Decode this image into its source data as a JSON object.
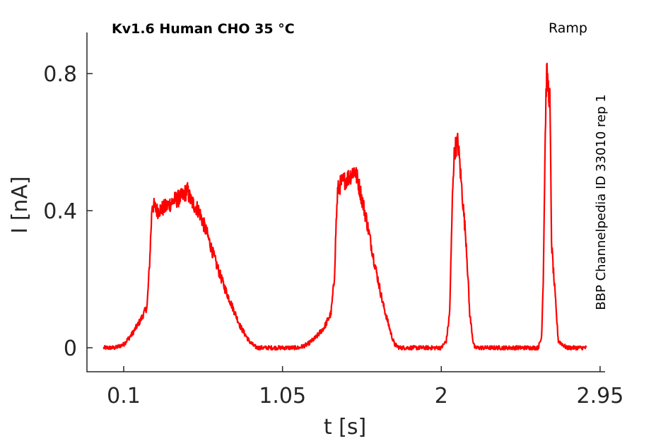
{
  "chart_data": {
    "type": "line",
    "title": "Kv1.6  Human  CHO  35 °C",
    "protocol": "Ramp",
    "side_label": "BBP Channelpedia ID 33010 rep 1",
    "xlabel": "t [s]",
    "ylabel": "I [nA]",
    "xlim": [
      -0.12,
      2.98
    ],
    "ylim": [
      -0.07,
      0.92
    ],
    "xticks": [
      0.1,
      1.05,
      2,
      2.95
    ],
    "xtick_labels": [
      "0.1",
      "1.05",
      "2",
      "2.95"
    ],
    "yticks": [
      0,
      0.4,
      0.8
    ],
    "ytick_labels": [
      "0",
      "0.4",
      "0.8"
    ],
    "grid": false,
    "line_color": "#ff0000",
    "series": [
      {
        "x": [
          -0.02,
          0.05,
          0.1,
          0.15,
          0.2,
          0.24,
          0.255,
          0.27,
          0.3,
          0.35,
          0.4,
          0.45,
          0.48,
          0.5,
          0.55,
          0.6,
          0.65,
          0.7,
          0.75,
          0.8,
          0.85,
          0.88,
          0.9,
          0.95,
          1.0,
          1.05,
          1.1,
          1.15,
          1.2,
          1.25,
          1.3,
          1.34,
          1.36,
          1.37,
          1.38,
          1.4,
          1.45,
          1.48,
          1.5,
          1.55,
          1.6,
          1.65,
          1.7,
          1.72,
          1.75,
          1.8,
          1.85,
          1.9,
          1.95,
          2.0,
          2.03,
          2.05,
          2.06,
          2.07,
          2.08,
          2.1,
          2.15,
          2.17,
          2.19,
          2.2,
          2.25,
          2.3,
          2.35,
          2.4,
          2.45,
          2.5,
          2.58,
          2.6,
          2.61,
          2.62,
          2.625,
          2.63,
          2.65,
          2.66,
          2.7,
          2.75,
          2.8,
          2.87
        ],
        "y": [
          0.0,
          0.0,
          0.01,
          0.04,
          0.08,
          0.12,
          0.25,
          0.42,
          0.4,
          0.41,
          0.43,
          0.44,
          0.46,
          0.43,
          0.4,
          0.33,
          0.25,
          0.18,
          0.12,
          0.06,
          0.02,
          0.005,
          0.0,
          0.0,
          0.0,
          0.0,
          0.0,
          0.0,
          0.01,
          0.03,
          0.06,
          0.1,
          0.2,
          0.35,
          0.46,
          0.48,
          0.5,
          0.52,
          0.49,
          0.38,
          0.25,
          0.13,
          0.04,
          0.01,
          0.0,
          0.0,
          0.0,
          0.0,
          0.0,
          0.0,
          0.02,
          0.1,
          0.3,
          0.5,
          0.58,
          0.6,
          0.3,
          0.1,
          0.02,
          0.0,
          0.0,
          0.0,
          0.0,
          0.0,
          0.0,
          0.0,
          0.0,
          0.03,
          0.2,
          0.55,
          0.7,
          0.8,
          0.72,
          0.3,
          0.02,
          0.0,
          0.0,
          0.0
        ]
      }
    ]
  }
}
